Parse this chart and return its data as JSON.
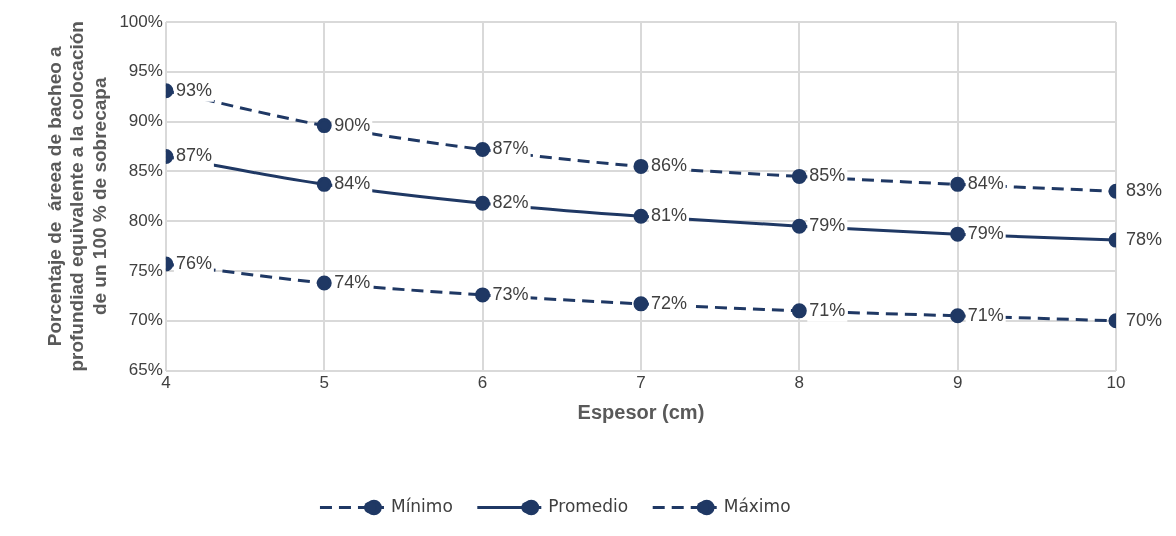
{
  "chart_data": {
    "type": "line",
    "xlabel": "Espesor (cm)",
    "ylabel": "Porcentaje de  áreea de bacheo a\nprofundiad equivalente a la colocación\nde un 100 % de sobrecapa",
    "x": [
      4,
      5,
      6,
      7,
      8,
      9,
      10
    ],
    "series": [
      {
        "name": "Mínimo",
        "color": "#1f3864",
        "line_style": "dashed",
        "values": [
          75.7,
          73.8,
          72.6,
          71.7,
          71.0,
          70.5,
          70.0
        ],
        "value_labels": [
          "76%",
          "74%",
          "73%",
          "72%",
          "71%",
          "71%",
          "70%"
        ]
      },
      {
        "name": "Promedio",
        "color": "#1f3864",
        "line_style": "solid",
        "values": [
          86.5,
          83.7,
          81.8,
          80.5,
          79.5,
          78.7,
          78.1
        ],
        "value_labels": [
          "87%",
          "84%",
          "82%",
          "81%",
          "79%",
          "79%",
          "78%"
        ]
      },
      {
        "name": "Máximo",
        "color": "#1f3864",
        "line_style": "dashed",
        "values": [
          93.1,
          89.6,
          87.2,
          85.5,
          84.5,
          83.7,
          83.0
        ],
        "value_labels": [
          "93%",
          "90%",
          "87%",
          "86%",
          "85%",
          "84%",
          "83%"
        ]
      }
    ],
    "xlim": [
      4,
      10
    ],
    "xticks": [
      4,
      5,
      6,
      7,
      8,
      9,
      10
    ],
    "ylim": [
      65,
      100
    ],
    "yticks": [
      {
        "value": 65,
        "label": "65%"
      },
      {
        "value": 70,
        "label": "70%"
      },
      {
        "value": 75,
        "label": "75%"
      },
      {
        "value": 80,
        "label": "80%"
      },
      {
        "value": 85,
        "label": "85%"
      },
      {
        "value": 90,
        "label": "90%"
      },
      {
        "value": 95,
        "label": "95%"
      },
      {
        "value": 100,
        "label": "100%"
      }
    ],
    "grid": true,
    "legend": "bottom",
    "marker": "circle"
  }
}
